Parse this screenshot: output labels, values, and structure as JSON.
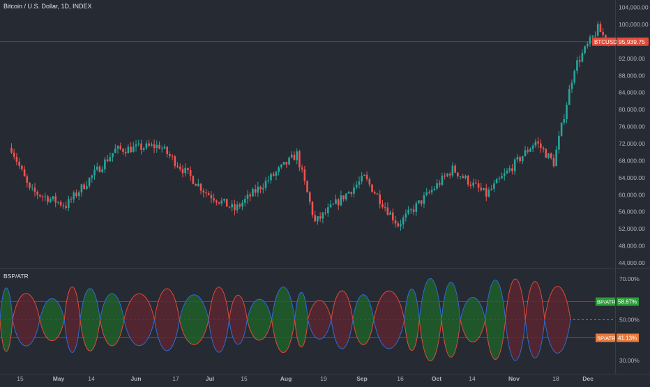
{
  "colors": {
    "background": "#262a33",
    "up": "#26a69a",
    "down": "#ef5350",
    "bp_fill": "#1f5f2a",
    "sp_fill": "#5a2630",
    "bp_line": "#2e6bd6",
    "sp_line": "#e04a3a",
    "bp_badge": "#2e9c3a",
    "sp_badge": "#e8793a",
    "price_badge": "#e04a3a"
  },
  "chart_data": [
    {
      "type": "candlestick",
      "title": "Bitcoin / U.S. Dollar, 1D, INDEX",
      "symbol": "BTCUSD",
      "last_price": "95,939.75",
      "y_ticks": [
        "104,000.00",
        "100,000.00",
        "92,000.00",
        "88,000.00",
        "84,000.00",
        "80,000.00",
        "76,000.00",
        "72,000.00",
        "68,000.00",
        "64,000.00",
        "60,000.00",
        "56,000.00",
        "52,000.00",
        "48,000.00",
        "44,000.00"
      ],
      "ylim": [
        43000,
        106000
      ],
      "x_ticks": [
        "15",
        "May",
        "14",
        "Jun",
        "17",
        "Jul",
        "15",
        "Aug",
        "19",
        "Sep",
        "16",
        "Oct",
        "14",
        "Nov",
        "18",
        "Dec"
      ],
      "key_points": [
        {
          "date": "2024-04-10",
          "close": 71000
        },
        {
          "date": "2024-04-17",
          "close": 61000
        },
        {
          "date": "2024-05-01",
          "close": 57500
        },
        {
          "date": "2024-05-20",
          "close": 70500
        },
        {
          "date": "2024-06-06",
          "close": 71500
        },
        {
          "date": "2024-06-24",
          "close": 60500
        },
        {
          "date": "2024-07-05",
          "close": 56500
        },
        {
          "date": "2024-07-29",
          "close": 69500
        },
        {
          "date": "2024-08-05",
          "close": 53500
        },
        {
          "date": "2024-08-24",
          "close": 64000
        },
        {
          "date": "2024-09-06",
          "close": 53000
        },
        {
          "date": "2024-09-27",
          "close": 66000
        },
        {
          "date": "2024-10-10",
          "close": 60000
        },
        {
          "date": "2024-10-29",
          "close": 72500
        },
        {
          "date": "2024-11-05",
          "close": 67500
        },
        {
          "date": "2024-11-13",
          "close": 90000
        },
        {
          "date": "2024-11-22",
          "close": 99000
        },
        {
          "date": "2024-11-26",
          "close": 95939.75
        }
      ]
    },
    {
      "type": "area",
      "title": "BSP/ATR",
      "y_ticks": [
        "70.00%",
        "50.00%",
        "30.00%"
      ],
      "ylim": [
        25,
        75
      ],
      "series": [
        {
          "name": "BP/ATR",
          "last": "58.87%"
        },
        {
          "name": "SP/ATR",
          "last": "41.13%"
        }
      ]
    }
  ]
}
